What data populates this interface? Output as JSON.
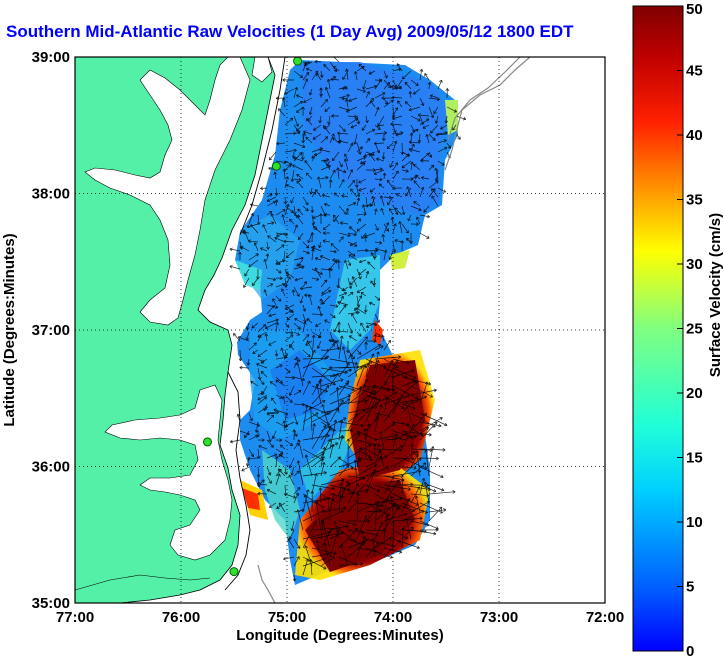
{
  "title": "Southern Mid-Atlantic Raw Velocities (1 Day Avg) 2009/05/12 1800 EDT",
  "map": {
    "xlabel": "Longitude (Degrees:Minutes)",
    "ylabel": "Latitude (Degrees:Minutes)",
    "x_ticks": [
      "77:00",
      "76:00",
      "75:00",
      "74:00",
      "73:00",
      "72:00"
    ],
    "y_ticks": [
      "39:00",
      "38:00",
      "37:00",
      "36:00",
      "35:00"
    ],
    "lon_range": [
      -77,
      -72
    ],
    "lat_range": [
      35,
      39
    ],
    "land_color": "#55f0a8",
    "grid": "dotted",
    "stations": [
      {
        "lon": -74.9,
        "lat": 38.97
      },
      {
        "lon": -75.1,
        "lat": 38.2
      },
      {
        "lon": -75.75,
        "lat": 36.18
      },
      {
        "lon": -75.5,
        "lat": 35.23
      }
    ]
  },
  "colorbar": {
    "label": "Surface Velocity (cm/s)",
    "ticks": [
      "0",
      "5",
      "10",
      "15",
      "20",
      "25",
      "30",
      "35",
      "40",
      "45",
      "50"
    ],
    "range": [
      0,
      50
    ],
    "colormap": "jet"
  }
}
